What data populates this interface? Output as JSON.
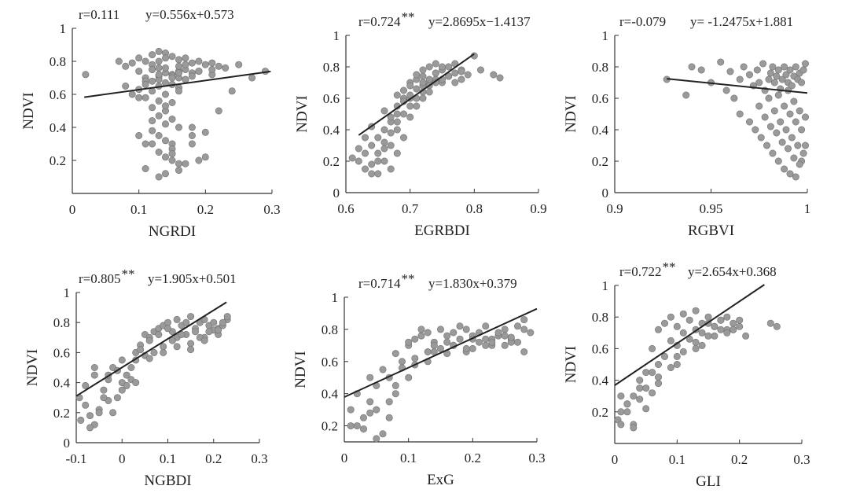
{
  "chart_data": [
    {
      "type": "scatter",
      "xlabel": "NGRDI",
      "ylabel": "NDVI",
      "annotation_r": "r=0.111",
      "annotation_sig": "",
      "annotation_eq": "y=0.556x+0.573",
      "xlim": [
        0,
        0.3
      ],
      "ylim": [
        0,
        1
      ],
      "xticks": [
        0,
        0.1,
        0.2,
        0.3
      ],
      "xtick_labels": [
        "0",
        "0.1",
        "0.2",
        "0.3"
      ],
      "yticks": [
        0.2,
        0.4,
        0.6,
        0.8,
        1
      ],
      "ytick_labels": [
        "0.2",
        "0.4",
        "0.6",
        "0.8",
        "1"
      ],
      "fit": {
        "slope": 0.556,
        "intercept": 0.573,
        "x_range": [
          0.018,
          0.298
        ]
      },
      "x": [
        0.02,
        0.07,
        0.08,
        0.09,
        0.1,
        0.11,
        0.12,
        0.13,
        0.14,
        0.15,
        0.16,
        0.17,
        0.18,
        0.19,
        0.2,
        0.21,
        0.22,
        0.23,
        0.25,
        0.27,
        0.29,
        0.1,
        0.12,
        0.13,
        0.14,
        0.15,
        0.16,
        0.17,
        0.18,
        0.11,
        0.13,
        0.15,
        0.16,
        0.12,
        0.14,
        0.17,
        0.13,
        0.15,
        0.1,
        0.12,
        0.14,
        0.16,
        0.11,
        0.13,
        0.15,
        0.12,
        0.14,
        0.13,
        0.15,
        0.14,
        0.16,
        0.12,
        0.13,
        0.14,
        0.15,
        0.1,
        0.11,
        0.13,
        0.14,
        0.15,
        0.16,
        0.18,
        0.2,
        0.22,
        0.24,
        0.08,
        0.09,
        0.11,
        0.12,
        0.13,
        0.14,
        0.16,
        0.17,
        0.19,
        0.21,
        0.1,
        0.12,
        0.15,
        0.18,
        0.2,
        0.11,
        0.14,
        0.16,
        0.19,
        0.13,
        0.17,
        0.12,
        0.15,
        0.18,
        0.14,
        0.16,
        0.13,
        0.15,
        0.12,
        0.14,
        0.16,
        0.18,
        0.11,
        0.13,
        0.15,
        0.17,
        0.19,
        0.21
      ],
      "y": [
        0.72,
        0.8,
        0.77,
        0.79,
        0.82,
        0.8,
        0.84,
        0.86,
        0.85,
        0.83,
        0.81,
        0.82,
        0.79,
        0.8,
        0.78,
        0.79,
        0.77,
        0.76,
        0.78,
        0.7,
        0.74,
        0.74,
        0.75,
        0.76,
        0.73,
        0.72,
        0.74,
        0.75,
        0.73,
        0.7,
        0.71,
        0.72,
        0.7,
        0.68,
        0.67,
        0.69,
        0.65,
        0.66,
        0.63,
        0.62,
        0.6,
        0.64,
        0.58,
        0.56,
        0.55,
        0.52,
        0.5,
        0.47,
        0.45,
        0.42,
        0.4,
        0.38,
        0.35,
        0.32,
        0.3,
        0.35,
        0.3,
        0.25,
        0.22,
        0.2,
        0.18,
        0.3,
        0.22,
        0.5,
        0.62,
        0.65,
        0.6,
        0.68,
        0.78,
        0.8,
        0.82,
        0.77,
        0.78,
        0.74,
        0.72,
        0.58,
        0.44,
        0.27,
        0.35,
        0.37,
        0.15,
        0.12,
        0.14,
        0.2,
        0.1,
        0.18,
        0.3,
        0.24,
        0.4,
        0.53,
        0.62,
        0.69,
        0.71,
        0.75,
        0.76,
        0.73,
        0.71,
        0.66,
        0.72,
        0.7,
        0.69,
        0.74,
        0.75
      ]
    },
    {
      "type": "scatter",
      "xlabel": "EGRBDI",
      "ylabel": "NDVI",
      "annotation_r": "r=0.724",
      "annotation_sig": "**",
      "annotation_eq": "y=2.8695x−1.4137",
      "xlim": [
        0.6,
        0.9
      ],
      "ylim": [
        0,
        1
      ],
      "xticks": [
        0.6,
        0.7,
        0.8,
        0.9
      ],
      "xtick_labels": [
        "0.6",
        "0.7",
        "0.8",
        "0.9"
      ],
      "yticks": [
        0,
        0.2,
        0.4,
        0.6,
        0.8,
        1
      ],
      "ytick_labels": [
        "0",
        "0.2",
        "0.4",
        "0.6",
        "0.8",
        "1"
      ],
      "fit": {
        "slope": 2.8695,
        "intercept": -1.4137,
        "x_range": [
          0.62,
          0.8
        ]
      },
      "x": [
        0.61,
        0.62,
        0.63,
        0.63,
        0.64,
        0.64,
        0.65,
        0.65,
        0.66,
        0.66,
        0.67,
        0.67,
        0.68,
        0.68,
        0.69,
        0.69,
        0.7,
        0.7,
        0.71,
        0.71,
        0.72,
        0.72,
        0.73,
        0.73,
        0.74,
        0.74,
        0.75,
        0.75,
        0.76,
        0.76,
        0.77,
        0.77,
        0.78,
        0.78,
        0.79,
        0.8,
        0.81,
        0.83,
        0.84,
        0.62,
        0.64,
        0.66,
        0.68,
        0.7,
        0.72,
        0.74,
        0.63,
        0.65,
        0.67,
        0.69,
        0.71,
        0.73,
        0.75,
        0.77,
        0.64,
        0.66,
        0.68,
        0.7,
        0.72,
        0.74,
        0.76,
        0.78,
        0.65,
        0.67,
        0.69,
        0.71,
        0.73,
        0.75,
        0.66,
        0.68,
        0.7,
        0.72,
        0.74,
        0.67,
        0.69,
        0.71,
        0.73,
        0.68,
        0.7,
        0.72
      ],
      "y": [
        0.22,
        0.2,
        0.25,
        0.15,
        0.3,
        0.18,
        0.35,
        0.12,
        0.4,
        0.2,
        0.45,
        0.3,
        0.5,
        0.55,
        0.6,
        0.65,
        0.7,
        0.6,
        0.72,
        0.75,
        0.78,
        0.68,
        0.8,
        0.7,
        0.82,
        0.72,
        0.78,
        0.7,
        0.8,
        0.74,
        0.76,
        0.7,
        0.78,
        0.72,
        0.75,
        0.87,
        0.78,
        0.75,
        0.73,
        0.28,
        0.42,
        0.52,
        0.62,
        0.68,
        0.74,
        0.76,
        0.35,
        0.25,
        0.48,
        0.58,
        0.66,
        0.72,
        0.8,
        0.82,
        0.12,
        0.32,
        0.4,
        0.55,
        0.64,
        0.7,
        0.74,
        0.77,
        0.2,
        0.38,
        0.5,
        0.6,
        0.68,
        0.72,
        0.28,
        0.45,
        0.62,
        0.7,
        0.76,
        0.15,
        0.35,
        0.55,
        0.64,
        0.25,
        0.48,
        0.6
      ]
    },
    {
      "type": "scatter",
      "xlabel": "RGBVI",
      "ylabel": "NDVI",
      "annotation_r": "r=-0.079",
      "annotation_sig": "",
      "annotation_eq": "y= -1.2475x+1.881",
      "xlim": [
        0.9,
        1
      ],
      "ylim": [
        0,
        1
      ],
      "xticks": [
        0.9,
        0.95,
        1
      ],
      "xtick_labels": [
        "0.9",
        "0.95",
        "1"
      ],
      "yticks": [
        0,
        0.2,
        0.4,
        0.6,
        0.8,
        1
      ],
      "ytick_labels": [
        "0",
        "0.2",
        "0.4",
        "0.6",
        "0.8",
        "1"
      ],
      "fit": {
        "slope": -1.2475,
        "intercept": 1.881,
        "x_range": [
          0.927,
          1.0
        ]
      },
      "x": [
        0.927,
        0.937,
        0.94,
        0.945,
        0.95,
        0.955,
        0.958,
        0.96,
        0.962,
        0.965,
        0.967,
        0.97,
        0.972,
        0.974,
        0.975,
        0.977,
        0.978,
        0.98,
        0.981,
        0.982,
        0.983,
        0.984,
        0.985,
        0.986,
        0.987,
        0.988,
        0.989,
        0.99,
        0.991,
        0.992,
        0.993,
        0.994,
        0.995,
        0.996,
        0.997,
        0.998,
        0.999,
        0.965,
        0.97,
        0.973,
        0.976,
        0.979,
        0.982,
        0.985,
        0.988,
        0.991,
        0.994,
        0.997,
        0.975,
        0.978,
        0.981,
        0.984,
        0.987,
        0.99,
        0.993,
        0.996,
        0.999,
        0.98,
        0.983,
        0.986,
        0.989,
        0.992,
        0.995,
        0.998,
        0.985,
        0.988,
        0.991,
        0.994,
        0.997,
        0.99,
        0.993,
        0.996,
        0.999
      ],
      "y": [
        0.72,
        0.62,
        0.8,
        0.78,
        0.7,
        0.83,
        0.65,
        0.77,
        0.6,
        0.72,
        0.8,
        0.75,
        0.68,
        0.78,
        0.7,
        0.82,
        0.65,
        0.72,
        0.76,
        0.8,
        0.7,
        0.74,
        0.78,
        0.66,
        0.72,
        0.8,
        0.75,
        0.7,
        0.78,
        0.68,
        0.74,
        0.8,
        0.72,
        0.76,
        0.7,
        0.78,
        0.82,
        0.5,
        0.45,
        0.4,
        0.35,
        0.3,
        0.25,
        0.2,
        0.15,
        0.12,
        0.1,
        0.2,
        0.55,
        0.48,
        0.42,
        0.38,
        0.32,
        0.28,
        0.22,
        0.18,
        0.3,
        0.6,
        0.52,
        0.45,
        0.4,
        0.35,
        0.3,
        0.25,
        0.62,
        0.55,
        0.5,
        0.45,
        0.4,
        0.65,
        0.58,
        0.52,
        0.48
      ]
    },
    {
      "type": "scatter",
      "xlabel": "NGBDI",
      "ylabel": "NDVI",
      "annotation_r": "r=0.805",
      "annotation_sig": "**",
      "annotation_eq": "y=1.905x+0.501",
      "xlim": [
        -0.1,
        0.3
      ],
      "ylim": [
        0,
        1
      ],
      "xticks": [
        -0.1,
        0,
        0.1,
        0.2,
        0.3
      ],
      "xtick_labels": [
        "-0.1",
        "0",
        "0.1",
        "0.2",
        "0.3"
      ],
      "yticks": [
        0,
        0.2,
        0.4,
        0.6,
        0.8,
        1
      ],
      "ytick_labels": [
        "0",
        "0.2",
        "0.4",
        "0.6",
        "0.8",
        "1"
      ],
      "fit": {
        "slope": 1.905,
        "intercept": 0.501,
        "x_range": [
          -0.1,
          0.228
        ]
      },
      "x": [
        -0.1,
        -0.09,
        -0.08,
        -0.07,
        -0.06,
        -0.05,
        -0.04,
        -0.03,
        -0.02,
        -0.01,
        0,
        0.01,
        0.02,
        0.03,
        0.04,
        0.05,
        0.06,
        0.07,
        0.08,
        0.09,
        0.1,
        0.11,
        0.12,
        0.13,
        0.14,
        0.15,
        0.16,
        0.17,
        0.18,
        0.19,
        0.2,
        0.21,
        0.22,
        0.23,
        -0.08,
        -0.06,
        -0.04,
        -0.02,
        0,
        0.02,
        0.04,
        0.06,
        0.08,
        0.1,
        0.12,
        0.14,
        0.16,
        0.18,
        0.2,
        0.22,
        -0.07,
        -0.05,
        -0.03,
        -0.01,
        0.01,
        0.03,
        0.05,
        0.07,
        0.09,
        0.11,
        0.13,
        0.15,
        0.17,
        0.19,
        0.21,
        0.23,
        -0.06,
        -0.03,
        0,
        0.03,
        0.06,
        0.09,
        0.12,
        0.15,
        0.18,
        0.21
      ],
      "y": [
        0.3,
        0.15,
        0.25,
        0.18,
        0.12,
        0.22,
        0.35,
        0.28,
        0.2,
        0.3,
        0.4,
        0.45,
        0.5,
        0.6,
        0.65,
        0.72,
        0.7,
        0.74,
        0.76,
        0.78,
        0.8,
        0.74,
        0.82,
        0.78,
        0.8,
        0.84,
        0.76,
        0.8,
        0.82,
        0.78,
        0.8,
        0.76,
        0.78,
        0.82,
        0.38,
        0.45,
        0.3,
        0.5,
        0.55,
        0.42,
        0.62,
        0.68,
        0.72,
        0.76,
        0.7,
        0.72,
        0.74,
        0.7,
        0.75,
        0.8,
        0.1,
        0.2,
        0.42,
        0.48,
        0.38,
        0.55,
        0.58,
        0.6,
        0.64,
        0.68,
        0.72,
        0.66,
        0.7,
        0.74,
        0.72,
        0.84,
        0.5,
        0.45,
        0.35,
        0.4,
        0.56,
        0.6,
        0.64,
        0.62,
        0.68,
        0.75
      ]
    },
    {
      "type": "scatter",
      "xlabel": "ExG",
      "ylabel": "NDVI",
      "annotation_r": "r=0.714",
      "annotation_sig": "**",
      "annotation_eq": "y=1.830x+0.379",
      "xlim": [
        0,
        0.3
      ],
      "ylim": [
        0.1,
        1
      ],
      "xticks": [
        0,
        0.1,
        0.2,
        0.3
      ],
      "xtick_labels": [
        "0",
        "0.1",
        "0.2",
        "0.3"
      ],
      "yticks": [
        0.2,
        0.4,
        0.6,
        0.8,
        1
      ],
      "ytick_labels": [
        "0.2",
        "0.4",
        "0.6",
        "0.8",
        "1"
      ],
      "fit": {
        "slope": 1.83,
        "intercept": 0.379,
        "x_range": [
          0,
          0.3
        ]
      },
      "x": [
        0.01,
        0.02,
        0.03,
        0.04,
        0.05,
        0.06,
        0.07,
        0.08,
        0.09,
        0.1,
        0.11,
        0.12,
        0.13,
        0.14,
        0.15,
        0.16,
        0.17,
        0.18,
        0.19,
        0.2,
        0.21,
        0.22,
        0.23,
        0.24,
        0.25,
        0.26,
        0.27,
        0.28,
        0.29,
        0.02,
        0.04,
        0.06,
        0.08,
        0.1,
        0.12,
        0.14,
        0.16,
        0.18,
        0.2,
        0.22,
        0.24,
        0.26,
        0.28,
        0.03,
        0.05,
        0.07,
        0.09,
        0.11,
        0.13,
        0.15,
        0.17,
        0.19,
        0.21,
        0.23,
        0.25,
        0.27,
        0.01,
        0.04,
        0.07,
        0.1,
        0.13,
        0.16,
        0.19,
        0.22,
        0.25,
        0.28,
        0.05,
        0.08,
        0.11,
        0.14,
        0.17,
        0.2,
        0.23,
        0.26
      ],
      "y": [
        0.3,
        0.2,
        0.25,
        0.35,
        0.3,
        0.15,
        0.25,
        0.45,
        0.6,
        0.7,
        0.74,
        0.76,
        0.78,
        0.72,
        0.8,
        0.76,
        0.78,
        0.74,
        0.8,
        0.76,
        0.78,
        0.82,
        0.74,
        0.76,
        0.8,
        0.74,
        0.82,
        0.86,
        0.78,
        0.4,
        0.5,
        0.55,
        0.65,
        0.72,
        0.8,
        0.7,
        0.72,
        0.82,
        0.74,
        0.7,
        0.78,
        0.72,
        0.8,
        0.18,
        0.45,
        0.5,
        0.56,
        0.62,
        0.66,
        0.68,
        0.7,
        0.66,
        0.72,
        0.7,
        0.76,
        0.72,
        0.2,
        0.28,
        0.35,
        0.5,
        0.6,
        0.65,
        0.68,
        0.74,
        0.7,
        0.66,
        0.12,
        0.4,
        0.58,
        0.66,
        0.7,
        0.68,
        0.72,
        0.75
      ]
    },
    {
      "type": "scatter",
      "xlabel": "GLI",
      "ylabel": "NDVI",
      "annotation_r": "r=0.722",
      "annotation_sig": "**",
      "annotation_eq": "y=2.654x+0.368",
      "xlim": [
        0,
        0.3
      ],
      "ylim": [
        0,
        1
      ],
      "xticks": [
        0,
        0.1,
        0.2,
        0.3
      ],
      "xtick_labels": [
        "0",
        "0.1",
        "0.2",
        "0.3"
      ],
      "yticks": [
        0.2,
        0.4,
        0.6,
        0.8,
        1
      ],
      "ytick_labels": [
        "0.2",
        "0.4",
        "0.6",
        "0.8",
        "1"
      ],
      "fit": {
        "slope": 2.654,
        "intercept": 0.368,
        "x_range": [
          0,
          0.24
        ]
      },
      "x": [
        0,
        0.01,
        0.02,
        0.03,
        0.04,
        0.05,
        0.06,
        0.07,
        0.08,
        0.09,
        0.1,
        0.11,
        0.12,
        0.13,
        0.14,
        0.15,
        0.16,
        0.17,
        0.18,
        0.19,
        0.2,
        0.21,
        0.25,
        0.26,
        0.01,
        0.03,
        0.05,
        0.07,
        0.09,
        0.11,
        0.13,
        0.15,
        0.17,
        0.19,
        0.02,
        0.04,
        0.06,
        0.08,
        0.1,
        0.12,
        0.14,
        0.16,
        0.18,
        0.2,
        0.03,
        0.05,
        0.07,
        0.09,
        0.11,
        0.13,
        0.15,
        0.17,
        0.01,
        0.04,
        0.07,
        0.1,
        0.13,
        0.16,
        0.19,
        0.02,
        0.06,
        0.1,
        0.14,
        0.18
      ],
      "y": [
        0.15,
        0.2,
        0.25,
        0.3,
        0.4,
        0.45,
        0.6,
        0.72,
        0.76,
        0.8,
        0.74,
        0.82,
        0.78,
        0.84,
        0.76,
        0.8,
        0.74,
        0.78,
        0.8,
        0.72,
        0.74,
        0.68,
        0.76,
        0.74,
        0.3,
        0.12,
        0.35,
        0.5,
        0.65,
        0.7,
        0.72,
        0.76,
        0.78,
        0.76,
        0.2,
        0.28,
        0.45,
        0.55,
        0.62,
        0.66,
        0.7,
        0.74,
        0.72,
        0.78,
        0.1,
        0.22,
        0.38,
        0.48,
        0.58,
        0.64,
        0.68,
        0.72,
        0.12,
        0.35,
        0.42,
        0.55,
        0.6,
        0.68,
        0.72,
        0.25,
        0.32,
        0.5,
        0.62,
        0.7
      ]
    }
  ]
}
